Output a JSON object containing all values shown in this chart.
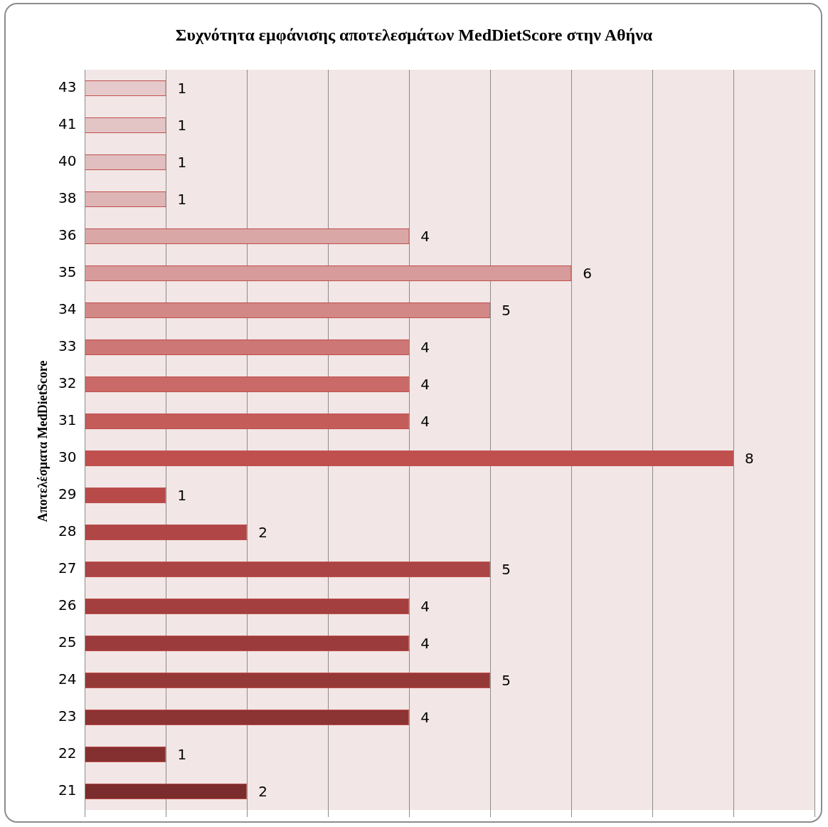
{
  "chart_data": {
    "type": "bar",
    "orientation": "horizontal",
    "title": "Συχνότητα εμφάνισης αποτελεσμάτων MedDietScore στην Αθήνα",
    "ylabel": "Αποτελέσματα MedDietScore",
    "categories": [
      "43",
      "41",
      "40",
      "38",
      "36",
      "35",
      "34",
      "33",
      "32",
      "31",
      "30",
      "29",
      "28",
      "27",
      "26",
      "25",
      "24",
      "23",
      "22",
      "21"
    ],
    "values": [
      1,
      1,
      1,
      1,
      4,
      6,
      5,
      4,
      4,
      4,
      8,
      1,
      2,
      5,
      4,
      4,
      5,
      4,
      1,
      2
    ],
    "colors": [
      "#e6c9ca",
      "#e4c5c6",
      "#e1bfc0",
      "#ddb5b5",
      "#daa7a7",
      "#d69b9a",
      "#d28886",
      "#cd7776",
      "#c96a68",
      "#c45c5a",
      "#c0504d",
      "#b84a4a",
      "#b04646",
      "#ab4444",
      "#a33f3f",
      "#9b3b3b",
      "#953838",
      "#8c3333",
      "#843030",
      "#7b2c2c"
    ],
    "xlim": [
      0,
      9
    ],
    "xticks": [
      {
        "value": 0,
        "label": null
      },
      {
        "value": 1,
        "label": null
      },
      {
        "value": 2,
        "label": null
      },
      {
        "value": 3,
        "label": null
      },
      {
        "value": 4,
        "label": null
      },
      {
        "value": 5,
        "label": null
      },
      {
        "value": 6,
        "label": null
      },
      {
        "value": 7,
        "label": null
      },
      {
        "value": 8,
        "label": null
      },
      {
        "value": 9,
        "label": null
      }
    ],
    "tick_labels": "y",
    "grid": "x",
    "legend": false,
    "data_labels": true
  }
}
